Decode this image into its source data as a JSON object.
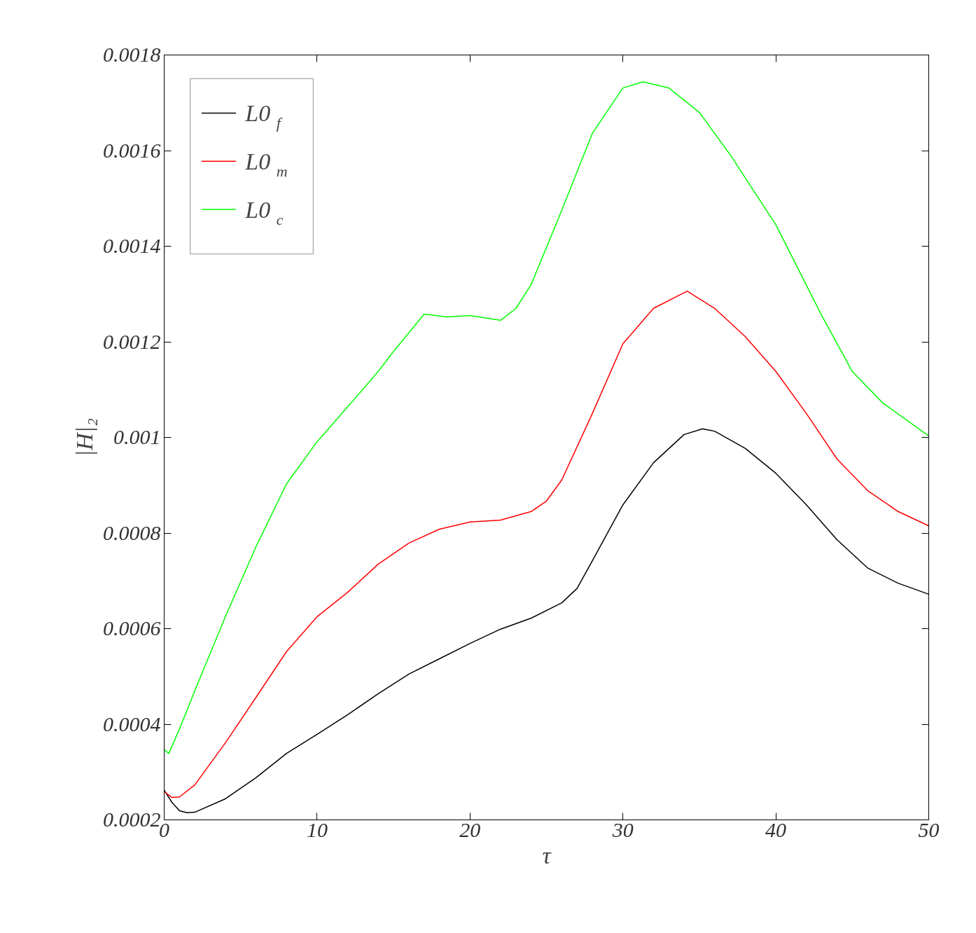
{
  "chart_data": {
    "type": "line",
    "xlabel": "τ",
    "ylabel": "|H|₂",
    "xlim": [
      0,
      50
    ],
    "ylim": [
      0.0002,
      0.0018
    ],
    "xticks": [
      0,
      10,
      20,
      30,
      40,
      50
    ],
    "yticks": [
      0.0002,
      0.0004,
      0.0006,
      0.0008,
      0.001,
      0.0012,
      0.0014,
      0.0016,
      0.0018
    ],
    "grid": false,
    "legend": "top left",
    "line_style": "solid",
    "marker": "none",
    "series": [
      {
        "name": "L0$_{f}$",
        "color": "#000000",
        "x": [
          0,
          0.5,
          1,
          1.5,
          2,
          4,
          6,
          8,
          10,
          12,
          14,
          16,
          18,
          20,
          22,
          24,
          26,
          27,
          28,
          30,
          32,
          34,
          35.2,
          36,
          38,
          40,
          42,
          44,
          46,
          48,
          50
        ],
        "values": [
          0.000262,
          0.000237,
          0.000219,
          0.000215,
          0.000216,
          0.000244,
          0.000288,
          0.000339,
          0.000379,
          0.00042,
          0.000464,
          0.000505,
          0.000537,
          0.000569,
          0.000599,
          0.000622,
          0.000654,
          0.000684,
          0.000742,
          0.000859,
          0.000947,
          0.001006,
          0.001018,
          0.001013,
          0.000977,
          0.000925,
          0.000859,
          0.000786,
          0.000727,
          0.000695,
          0.000672
        ]
      },
      {
        "name": "L0$_{m}$",
        "color": "#ff0000",
        "x": [
          0,
          0.5,
          1,
          2,
          4,
          6,
          8,
          10,
          12,
          14,
          16,
          18,
          20,
          22,
          24,
          25,
          26,
          28,
          30,
          32,
          34.2,
          36,
          38,
          40,
          42,
          44,
          46,
          48,
          50
        ],
        "values": [
          0.000259,
          0.000247,
          0.000248,
          0.000273,
          0.000361,
          0.000456,
          0.000552,
          0.000625,
          0.000676,
          0.000735,
          0.000779,
          0.000808,
          0.000823,
          0.000827,
          0.000845,
          0.000867,
          0.000911,
          0.00105,
          0.001196,
          0.00127,
          0.001306,
          0.00127,
          0.001211,
          0.001138,
          0.00105,
          0.000955,
          0.000889,
          0.000845,
          0.000815
        ]
      },
      {
        "name": "L0$_{c}$",
        "color": "#00ff00",
        "x": [
          0,
          0.3,
          1,
          2,
          4,
          6,
          8,
          10,
          12,
          14,
          15,
          17,
          18.5,
          20,
          22,
          23,
          24,
          26,
          28,
          30,
          31.3,
          33,
          35,
          37,
          40,
          43,
          45,
          47,
          50
        ],
        "values": [
          0.000347,
          0.000339,
          0.00039,
          0.00047,
          0.000625,
          0.000771,
          0.000903,
          0.000991,
          0.001064,
          0.001138,
          0.00118,
          0.001258,
          0.001252,
          0.001255,
          0.001245,
          0.00127,
          0.00132,
          0.001475,
          0.001636,
          0.001731,
          0.001744,
          0.001731,
          0.00168,
          0.001592,
          0.001445,
          0.001255,
          0.001138,
          0.001072,
          0.001003
        ]
      }
    ]
  }
}
